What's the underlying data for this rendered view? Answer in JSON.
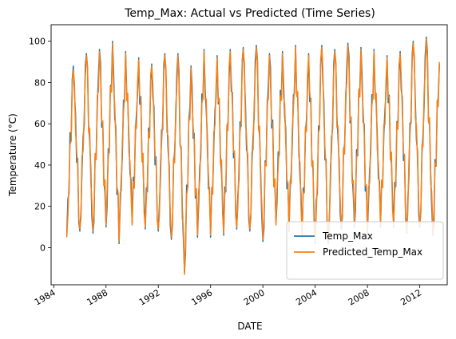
{
  "chart_data": {
    "type": "line",
    "title": "Temp_Max: Actual vs Predicted (Time Series)",
    "xlabel": "DATE",
    "ylabel": "Temperature (°C)",
    "x_range": [
      1983.8,
      2014.1
    ],
    "x_ticks": [
      {
        "value": 1984,
        "label": "1984"
      },
      {
        "value": 1988,
        "label": "1988"
      },
      {
        "value": 1992,
        "label": "1992"
      },
      {
        "value": 1996,
        "label": "1996"
      },
      {
        "value": 2000,
        "label": "2000"
      },
      {
        "value": 2004,
        "label": "2004"
      },
      {
        "value": 2008,
        "label": "2008"
      },
      {
        "value": 2012,
        "label": "2012"
      }
    ],
    "ylim": [
      -18,
      108
    ],
    "y_ticks": [
      {
        "value": 0,
        "label": "0"
      },
      {
        "value": 20,
        "label": "20"
      },
      {
        "value": 40,
        "label": "40"
      },
      {
        "value": 60,
        "label": "60"
      },
      {
        "value": 80,
        "label": "80"
      },
      {
        "value": 100,
        "label": "100"
      }
    ],
    "grid": false,
    "legend_position": "lower-right",
    "series": [
      {
        "name": "Temp_Max",
        "color": "#1f77b4",
        "x": [
          1985.0,
          1985.5,
          1986.0,
          1986.5,
          1987.0,
          1987.5,
          1988.0,
          1988.5,
          1989.0,
          1989.5,
          1990.0,
          1990.5,
          1991.0,
          1991.5,
          1992.0,
          1992.5,
          1993.0,
          1993.5,
          1994.0,
          1994.5,
          1995.0,
          1995.5,
          1996.0,
          1996.5,
          1997.0,
          1997.5,
          1998.0,
          1998.5,
          1999.0,
          1999.5,
          2000.0,
          2000.5,
          2001.0,
          2001.5,
          2002.0,
          2002.5,
          2003.0,
          2003.5,
          2004.0,
          2004.5,
          2005.0,
          2005.5,
          2006.0,
          2006.5,
          2007.0,
          2007.5,
          2008.0,
          2008.5,
          2009.0,
          2009.5,
          2010.0,
          2010.5,
          2011.0,
          2011.5,
          2012.0,
          2012.5,
          2013.0,
          2013.5
        ],
        "y": [
          6,
          88,
          8,
          94,
          7,
          96,
          10,
          100,
          2,
          95,
          12,
          92,
          9,
          89,
          8,
          94,
          4,
          94,
          -12,
          88,
          5,
          96,
          5,
          93,
          6,
          96,
          9,
          97,
          8,
          98,
          3,
          94,
          12,
          95,
          8,
          98,
          5,
          94,
          2,
          98,
          2,
          96,
          9,
          99,
          10,
          97,
          6,
          96,
          10,
          93,
          10,
          95,
          7,
          100,
          10,
          102,
          6,
          89
        ]
      },
      {
        "name": "Predicted_Temp_Max",
        "color": "#ff7f0e",
        "x": [
          1985.0,
          1985.5,
          1986.0,
          1986.5,
          1987.0,
          1987.5,
          1988.0,
          1988.5,
          1989.0,
          1989.5,
          1990.0,
          1990.5,
          1991.0,
          1991.5,
          1992.0,
          1992.5,
          1993.0,
          1993.5,
          1994.0,
          1994.5,
          1995.0,
          1995.5,
          1996.0,
          1996.5,
          1997.0,
          1997.5,
          1998.0,
          1998.5,
          1999.0,
          1999.5,
          2000.0,
          2000.5,
          2001.0,
          2001.5,
          2002.0,
          2002.5,
          2003.0,
          2003.5,
          2004.0,
          2004.5,
          2005.0,
          2005.5,
          2006.0,
          2006.5,
          2007.0,
          2007.5,
          2008.0,
          2008.5,
          2009.0,
          2009.5,
          2010.0,
          2010.5,
          2011.0,
          2011.5,
          2012.0,
          2012.5,
          2013.0,
          2013.5
        ],
        "y": [
          5,
          86,
          9,
          93,
          8,
          95,
          11,
          99,
          3,
          94,
          11,
          91,
          10,
          88,
          9,
          93,
          5,
          93,
          -13,
          87,
          6,
          95,
          6,
          92,
          7,
          95,
          10,
          96,
          9,
          97,
          4,
          93,
          11,
          94,
          9,
          97,
          6,
          93,
          3,
          97,
          3,
          95,
          10,
          98,
          11,
          96,
          7,
          95,
          11,
          92,
          11,
          94,
          8,
          99,
          11,
          101,
          7,
          90
        ]
      }
    ]
  }
}
